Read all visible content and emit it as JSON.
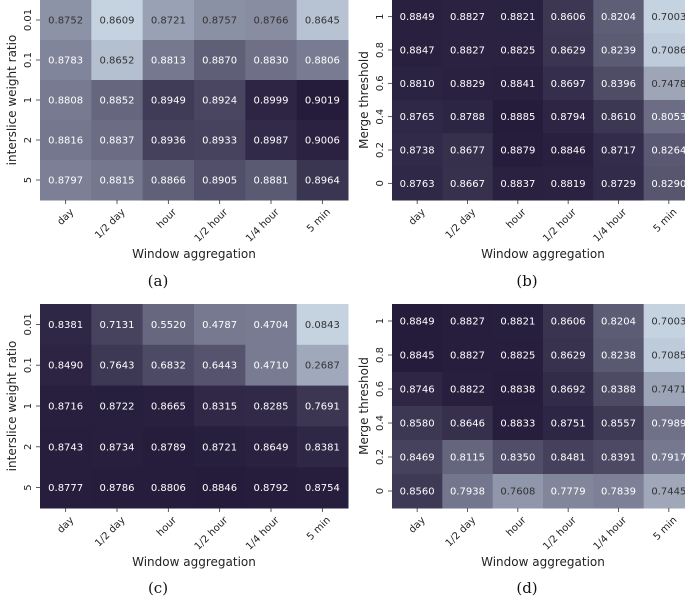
{
  "chart_data": [
    {
      "type": "heatmap",
      "caption": "(a)",
      "xlabel": "Window aggregation",
      "ylabel": "interslice weight ratio",
      "x_categories": [
        "day",
        "1/2 day",
        "hour",
        "1/2 hour",
        "1/4 hour",
        "5 min"
      ],
      "y_categories": [
        "0.01",
        "0.1",
        "1",
        "2",
        "5"
      ],
      "values": [
        [
          "0.8752",
          "0.8609",
          "0.8721",
          "0.8757",
          "0.8766",
          "0.8645"
        ],
        [
          "0.8783",
          "0.8652",
          "0.8813",
          "0.8870",
          "0.8830",
          "0.8806"
        ],
        [
          "0.8808",
          "0.8852",
          "0.8949",
          "0.8924",
          "0.8999",
          "0.9019"
        ],
        [
          "0.8816",
          "0.8837",
          "0.8936",
          "0.8933",
          "0.8987",
          "0.9006"
        ],
        [
          "0.8797",
          "0.8815",
          "0.8866",
          "0.8905",
          "0.8881",
          "0.8964"
        ]
      ]
    },
    {
      "type": "heatmap",
      "caption": "(b)",
      "xlabel": "Window aggregation",
      "ylabel": "Merge threshold",
      "x_categories": [
        "day",
        "1/2 day",
        "hour",
        "1/2 hour",
        "1/4 hour",
        "5 min"
      ],
      "y_categories": [
        "1",
        "0.8",
        "0.6",
        "0.4",
        "0.2",
        "0"
      ],
      "values": [
        [
          "0.8849",
          "0.8827",
          "0.8821",
          "0.8606",
          "0.8204",
          "0.7003"
        ],
        [
          "0.8847",
          "0.8827",
          "0.8825",
          "0.8629",
          "0.8239",
          "0.7086"
        ],
        [
          "0.8810",
          "0.8829",
          "0.8841",
          "0.8697",
          "0.8396",
          "0.7478"
        ],
        [
          "0.8765",
          "0.8788",
          "0.8885",
          "0.8794",
          "0.8610",
          "0.8053"
        ],
        [
          "0.8738",
          "0.8677",
          "0.8879",
          "0.8846",
          "0.8717",
          "0.8264"
        ],
        [
          "0.8763",
          "0.8667",
          "0.8837",
          "0.8819",
          "0.8729",
          "0.8290"
        ]
      ]
    },
    {
      "type": "heatmap",
      "caption": "(c)",
      "xlabel": "Window aggregation",
      "ylabel": "interslice weight ratio",
      "x_categories": [
        "day",
        "1/2 day",
        "hour",
        "1/2 hour",
        "1/4 hour",
        "5 min"
      ],
      "y_categories": [
        "0.01",
        "0.1",
        "1",
        "2",
        "5"
      ],
      "values": [
        [
          "0.8381",
          "0.7131",
          "0.5520",
          "0.4787",
          "0.4704",
          "0.0843"
        ],
        [
          "0.8490",
          "0.7643",
          "0.6832",
          "0.6443",
          "0.4710",
          "0.2687"
        ],
        [
          "0.8716",
          "0.8722",
          "0.8665",
          "0.8315",
          "0.8285",
          "0.7691"
        ],
        [
          "0.8743",
          "0.8734",
          "0.8789",
          "0.8721",
          "0.8649",
          "0.8381"
        ],
        [
          "0.8777",
          "0.8786",
          "0.8806",
          "0.8846",
          "0.8792",
          "0.8754"
        ]
      ]
    },
    {
      "type": "heatmap",
      "caption": "(d)",
      "xlabel": "Window aggregation",
      "ylabel": "Merge threshold",
      "x_categories": [
        "day",
        "1/2 day",
        "hour",
        "1/2 hour",
        "1/4 hour",
        "5 min"
      ],
      "y_categories": [
        "1",
        "0.8",
        "0.6",
        "0.4",
        "0.2",
        "0"
      ],
      "values": [
        [
          "0.8849",
          "0.8827",
          "0.8821",
          "0.8606",
          "0.8204",
          "0.7003"
        ],
        [
          "0.8845",
          "0.8827",
          "0.8825",
          "0.8629",
          "0.8238",
          "0.7085"
        ],
        [
          "0.8746",
          "0.8822",
          "0.8838",
          "0.8692",
          "0.8388",
          "0.7471"
        ],
        [
          "0.8580",
          "0.8646",
          "0.8833",
          "0.8751",
          "0.8557",
          "0.7989"
        ],
        [
          "0.8469",
          "0.8115",
          "0.8350",
          "0.8481",
          "0.8391",
          "0.7917"
        ],
        [
          "0.8560",
          "0.7938",
          "0.7608",
          "0.7779",
          "0.7839",
          "0.7445"
        ]
      ]
    }
  ],
  "colors": {
    "low": "#c5d3e1",
    "high": "#251c3b",
    "text_light": "#ffffff",
    "text_dark": "#333333"
  }
}
